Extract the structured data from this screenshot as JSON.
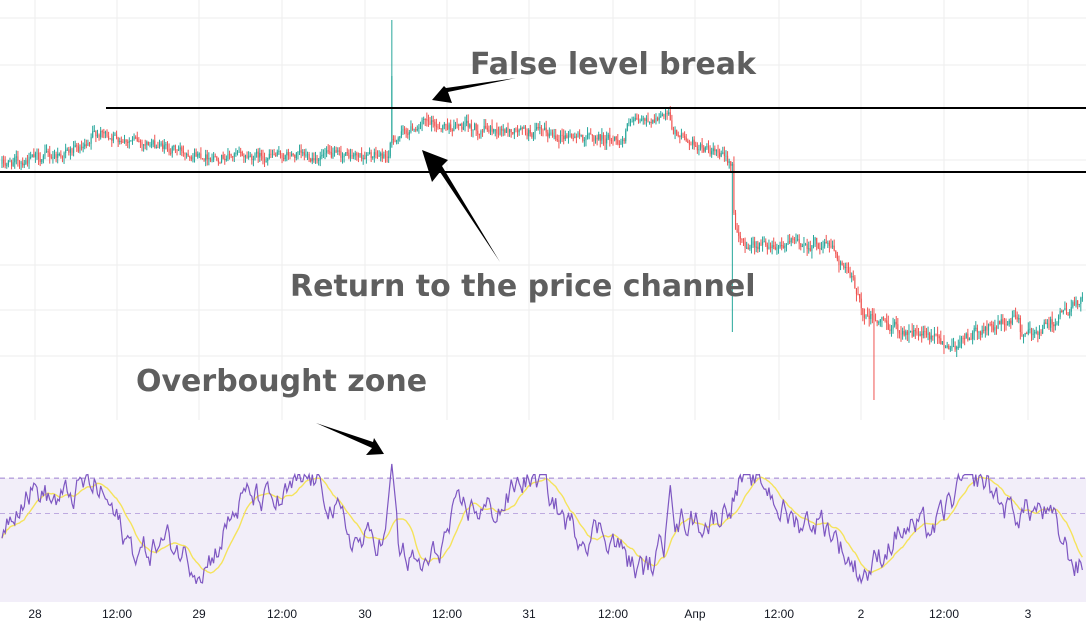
{
  "colors": {
    "up": "#26a69a",
    "down": "#ef5350",
    "indicator_line": "#7e57c2",
    "indicator_ma": "#f5e35c",
    "indicator_band": "#7e57c2",
    "level_line": "#000000",
    "grid": "#eeeeee",
    "annotation_text": "#5f5f5f"
  },
  "chart_data": [
    {
      "type": "candlestick",
      "annotations": [
        "False level break",
        "Return to the price channel"
      ],
      "levels": [
        {
          "value": 0.78,
          "label": ""
        },
        {
          "value": 0.62,
          "label": ""
        }
      ],
      "segments": [
        {
          "start": 0,
          "end": 56,
          "from": 0.64,
          "to": 0.68,
          "noise": 0.022
        },
        {
          "start": 56,
          "end": 128,
          "from": 0.72,
          "to": 0.66,
          "noise": 0.02
        },
        {
          "start": 128,
          "end": 244,
          "from": 0.66,
          "to": 0.66,
          "noise": 0.02
        },
        {
          "start": 244,
          "end": 262,
          "from": 0.7,
          "to": 0.74,
          "noise": 0.02
        },
        {
          "start": 262,
          "end": 392,
          "from": 0.74,
          "to": 0.7,
          "noise": 0.022
        },
        {
          "start": 392,
          "end": 420,
          "from": 0.74,
          "to": 0.76,
          "noise": 0.018
        },
        {
          "start": 420,
          "end": 460,
          "from": 0.72,
          "to": 0.64,
          "noise": 0.02
        },
        {
          "start": 460,
          "end": 520,
          "from": 0.44,
          "to": 0.44,
          "noise": 0.024
        },
        {
          "start": 520,
          "end": 540,
          "from": 0.44,
          "to": 0.3,
          "noise": 0.024
        },
        {
          "start": 540,
          "end": 600,
          "from": 0.26,
          "to": 0.18,
          "noise": 0.026
        },
        {
          "start": 600,
          "end": 640,
          "from": 0.2,
          "to": 0.26,
          "noise": 0.024
        },
        {
          "start": 640,
          "end": 680,
          "from": 0.2,
          "to": 0.3,
          "noise": 0.024
        }
      ],
      "events": [
        {
          "index": 245,
          "kind": "spike-up",
          "high": 1.0,
          "close": 0.86
        },
        {
          "index": 459,
          "kind": "spike-down",
          "low": 0.22
        },
        {
          "index": 548,
          "kind": "spike-down",
          "low": 0.05
        }
      ]
    },
    {
      "type": "line",
      "series": [
        {
          "name": "",
          "role": "oscillator"
        },
        {
          "name": "",
          "role": "moving-average"
        }
      ],
      "ylim": [
        0,
        100
      ],
      "bands": {
        "upper": 70,
        "middle": 50,
        "lower": 30
      },
      "annotations": [
        "Overbought zone"
      ],
      "events": [
        {
          "index": 245,
          "value": 78
        },
        {
          "index": 420,
          "value": 66
        }
      ]
    }
  ],
  "x_axis": {
    "ticks": [
      "28",
      "12:00",
      "29",
      "12:00",
      "30",
      "12:00",
      "31",
      "12:00",
      "Апр",
      "12:00",
      "2",
      "12:00",
      "3"
    ]
  }
}
